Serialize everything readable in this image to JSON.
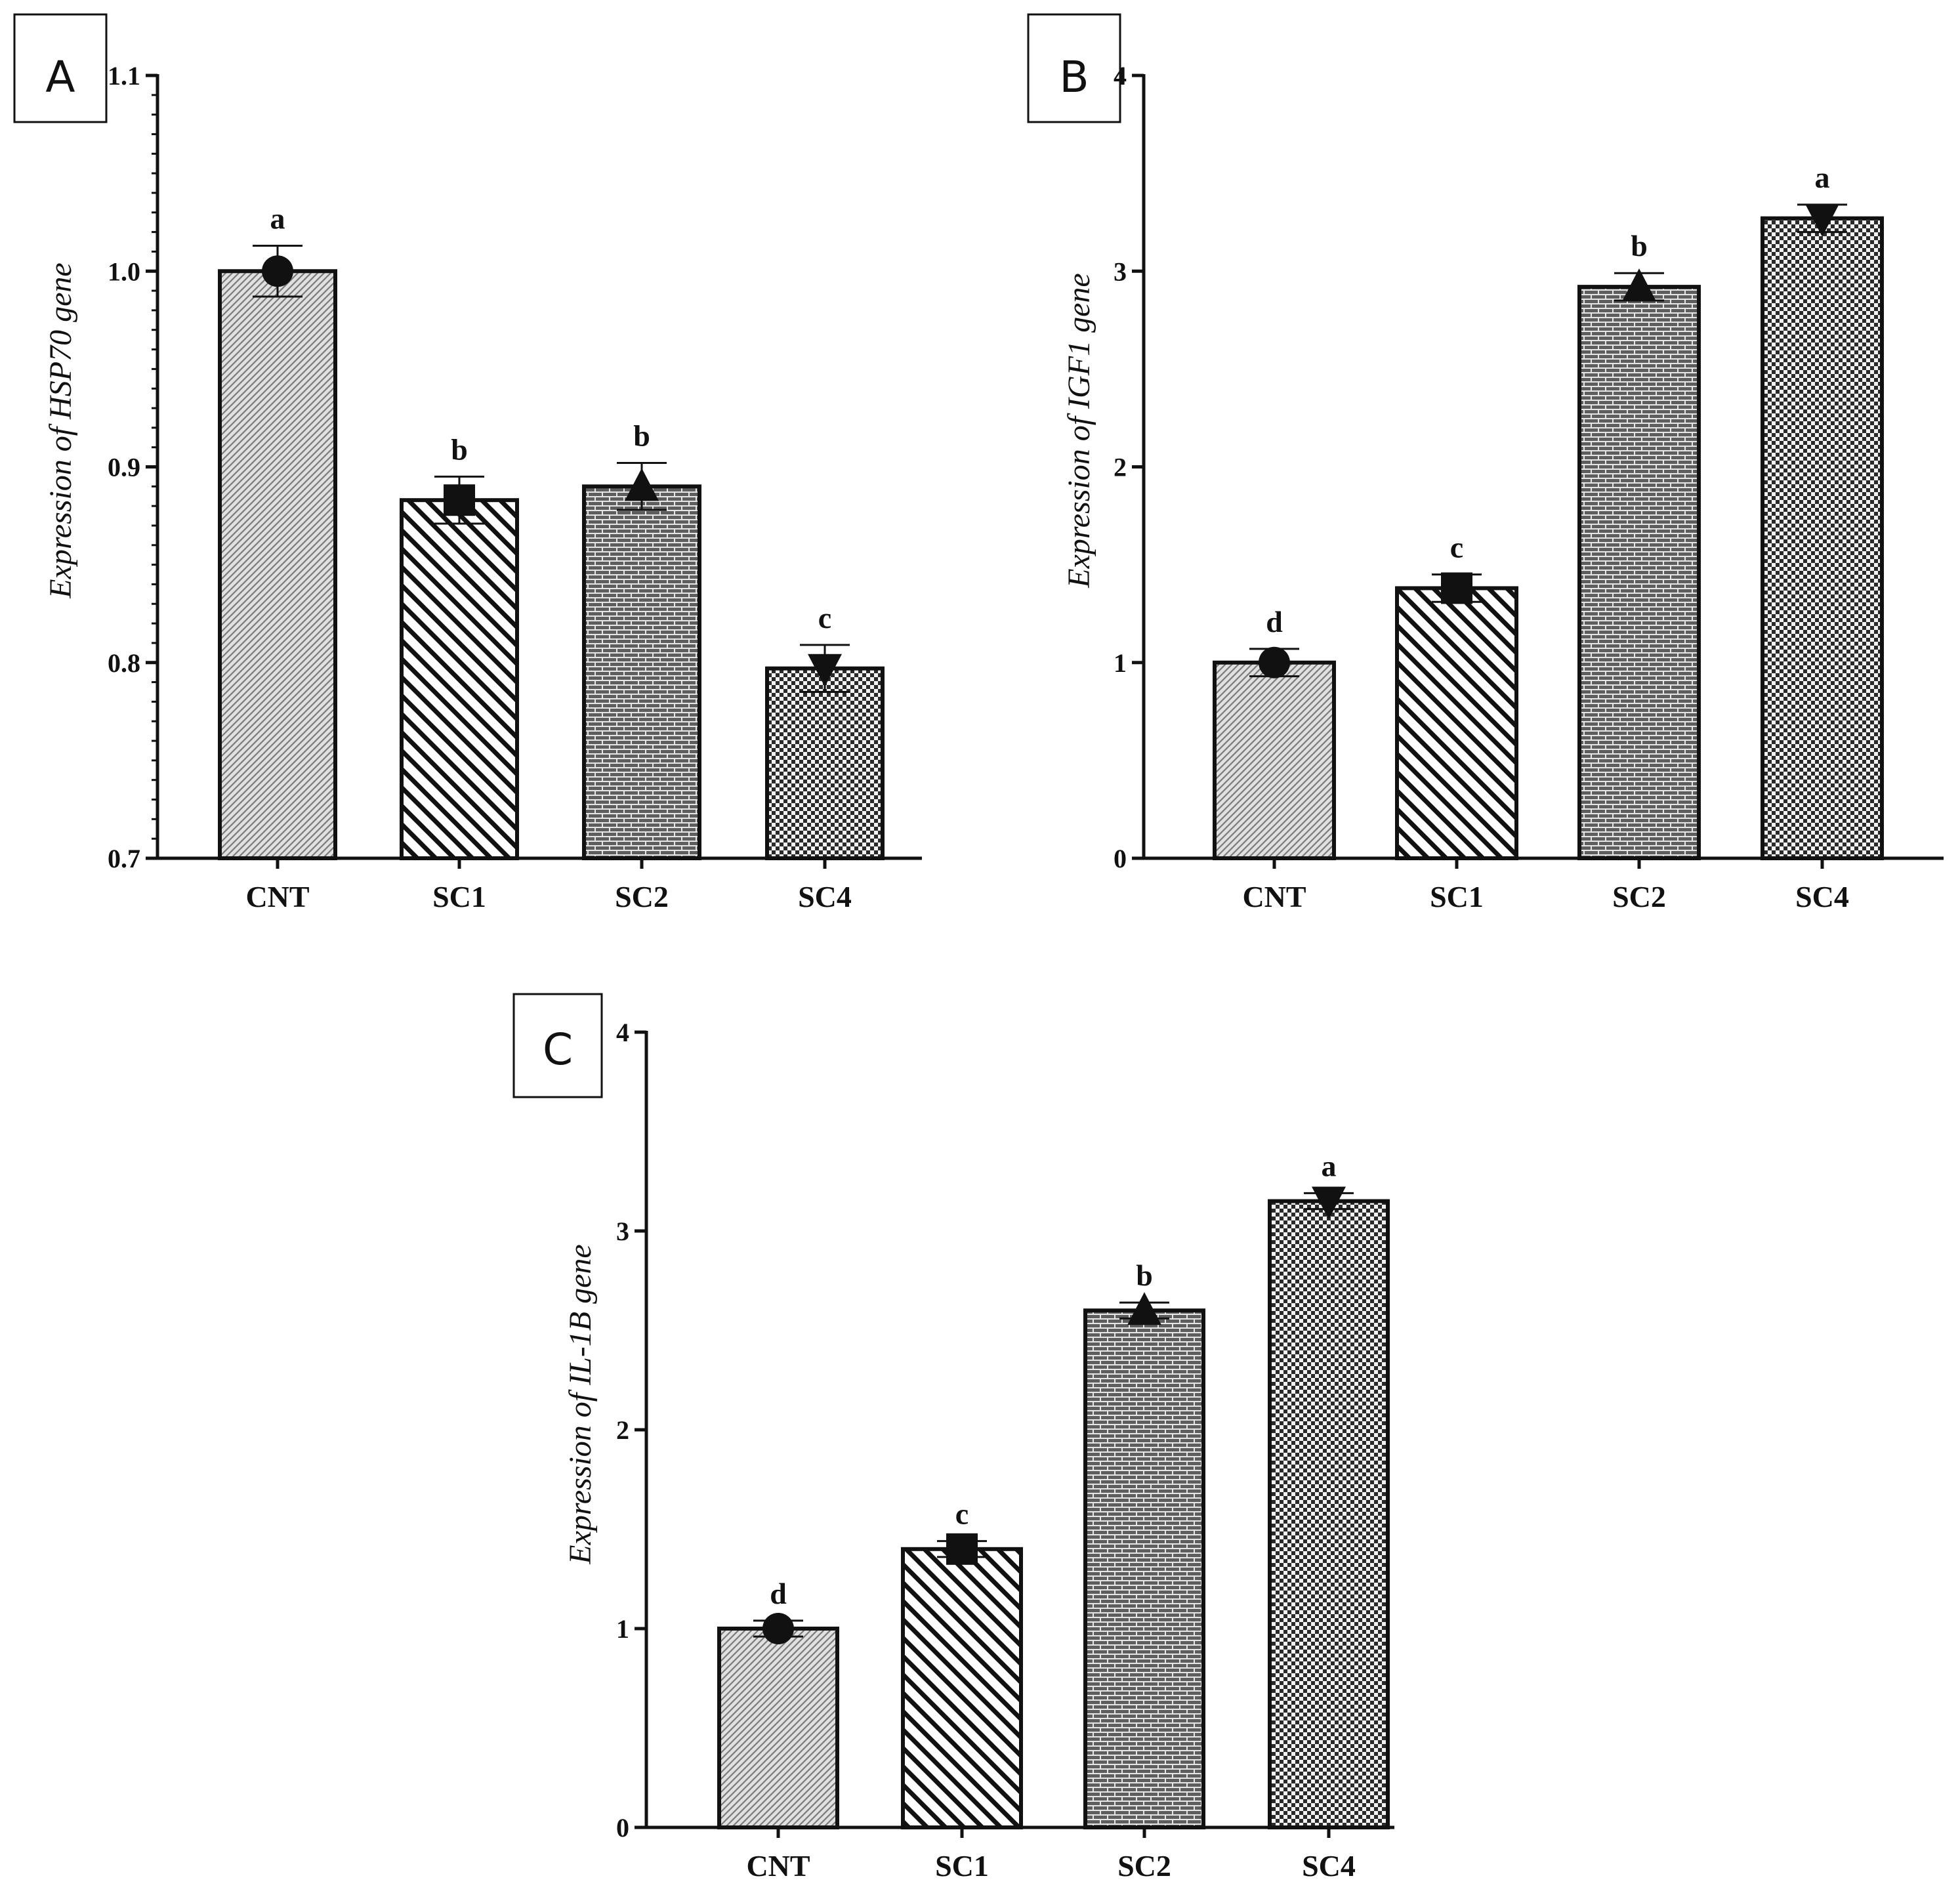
{
  "figure": {
    "panels": [
      {
        "letter": "A"
      },
      {
        "letter": "B"
      },
      {
        "letter": "C"
      }
    ]
  },
  "chart_data": [
    {
      "type": "bar",
      "panel": "A",
      "title": "",
      "xlabel": "",
      "ylabel": "Expression of HSP70 gene",
      "categories": [
        "CNT",
        "SC1",
        "SC2",
        "SC4"
      ],
      "values": [
        1.0,
        0.883,
        0.89,
        0.797
      ],
      "errors": [
        0.013,
        0.012,
        0.012,
        0.012
      ],
      "markers": [
        "circle",
        "square",
        "triangle-up",
        "triangle-down"
      ],
      "patterns": [
        "fine-diagonal",
        "wide-diagonal",
        "brick",
        "checker"
      ],
      "significance": [
        "a",
        "b",
        "b",
        "c"
      ],
      "ylim": [
        0.7,
        1.1
      ],
      "yticks": [
        0.7,
        0.8,
        0.9,
        1.0,
        1.1
      ],
      "ytick_labels": [
        "0.7",
        "0.8",
        "0.9",
        "1.0",
        "1.1"
      ],
      "grid": false
    },
    {
      "type": "bar",
      "panel": "B",
      "title": "",
      "xlabel": "",
      "ylabel": "Expression of IGF1 gene",
      "categories": [
        "CNT",
        "SC1",
        "SC2",
        "SC4"
      ],
      "values": [
        1.0,
        1.38,
        2.92,
        3.27
      ],
      "errors": [
        0.07,
        0.07,
        0.07,
        0.07
      ],
      "markers": [
        "circle",
        "square",
        "triangle-up",
        "triangle-down"
      ],
      "patterns": [
        "fine-diagonal",
        "wide-diagonal",
        "brick",
        "checker"
      ],
      "significance": [
        "d",
        "c",
        "b",
        "a"
      ],
      "ylim": [
        0,
        4
      ],
      "yticks": [
        0,
        1,
        2,
        3,
        4
      ],
      "ytick_labels": [
        "0",
        "1",
        "2",
        "3",
        "4"
      ],
      "grid": false
    },
    {
      "type": "bar",
      "panel": "C",
      "title": "",
      "xlabel": "",
      "ylabel": "Expression of IL-1B gene",
      "categories": [
        "CNT",
        "SC1",
        "SC2",
        "SC4"
      ],
      "values": [
        1.0,
        1.4,
        2.6,
        3.15
      ],
      "errors": [
        0.04,
        0.04,
        0.04,
        0.04
      ],
      "markers": [
        "circle",
        "square",
        "triangle-up",
        "triangle-down"
      ],
      "patterns": [
        "fine-diagonal",
        "wide-diagonal",
        "brick",
        "checker"
      ],
      "significance": [
        "d",
        "c",
        "b",
        "a"
      ],
      "ylim": [
        0,
        4
      ],
      "yticks": [
        0,
        1,
        2,
        3,
        4
      ],
      "ytick_labels": [
        "0",
        "1",
        "2",
        "3",
        "4"
      ],
      "grid": false
    }
  ]
}
